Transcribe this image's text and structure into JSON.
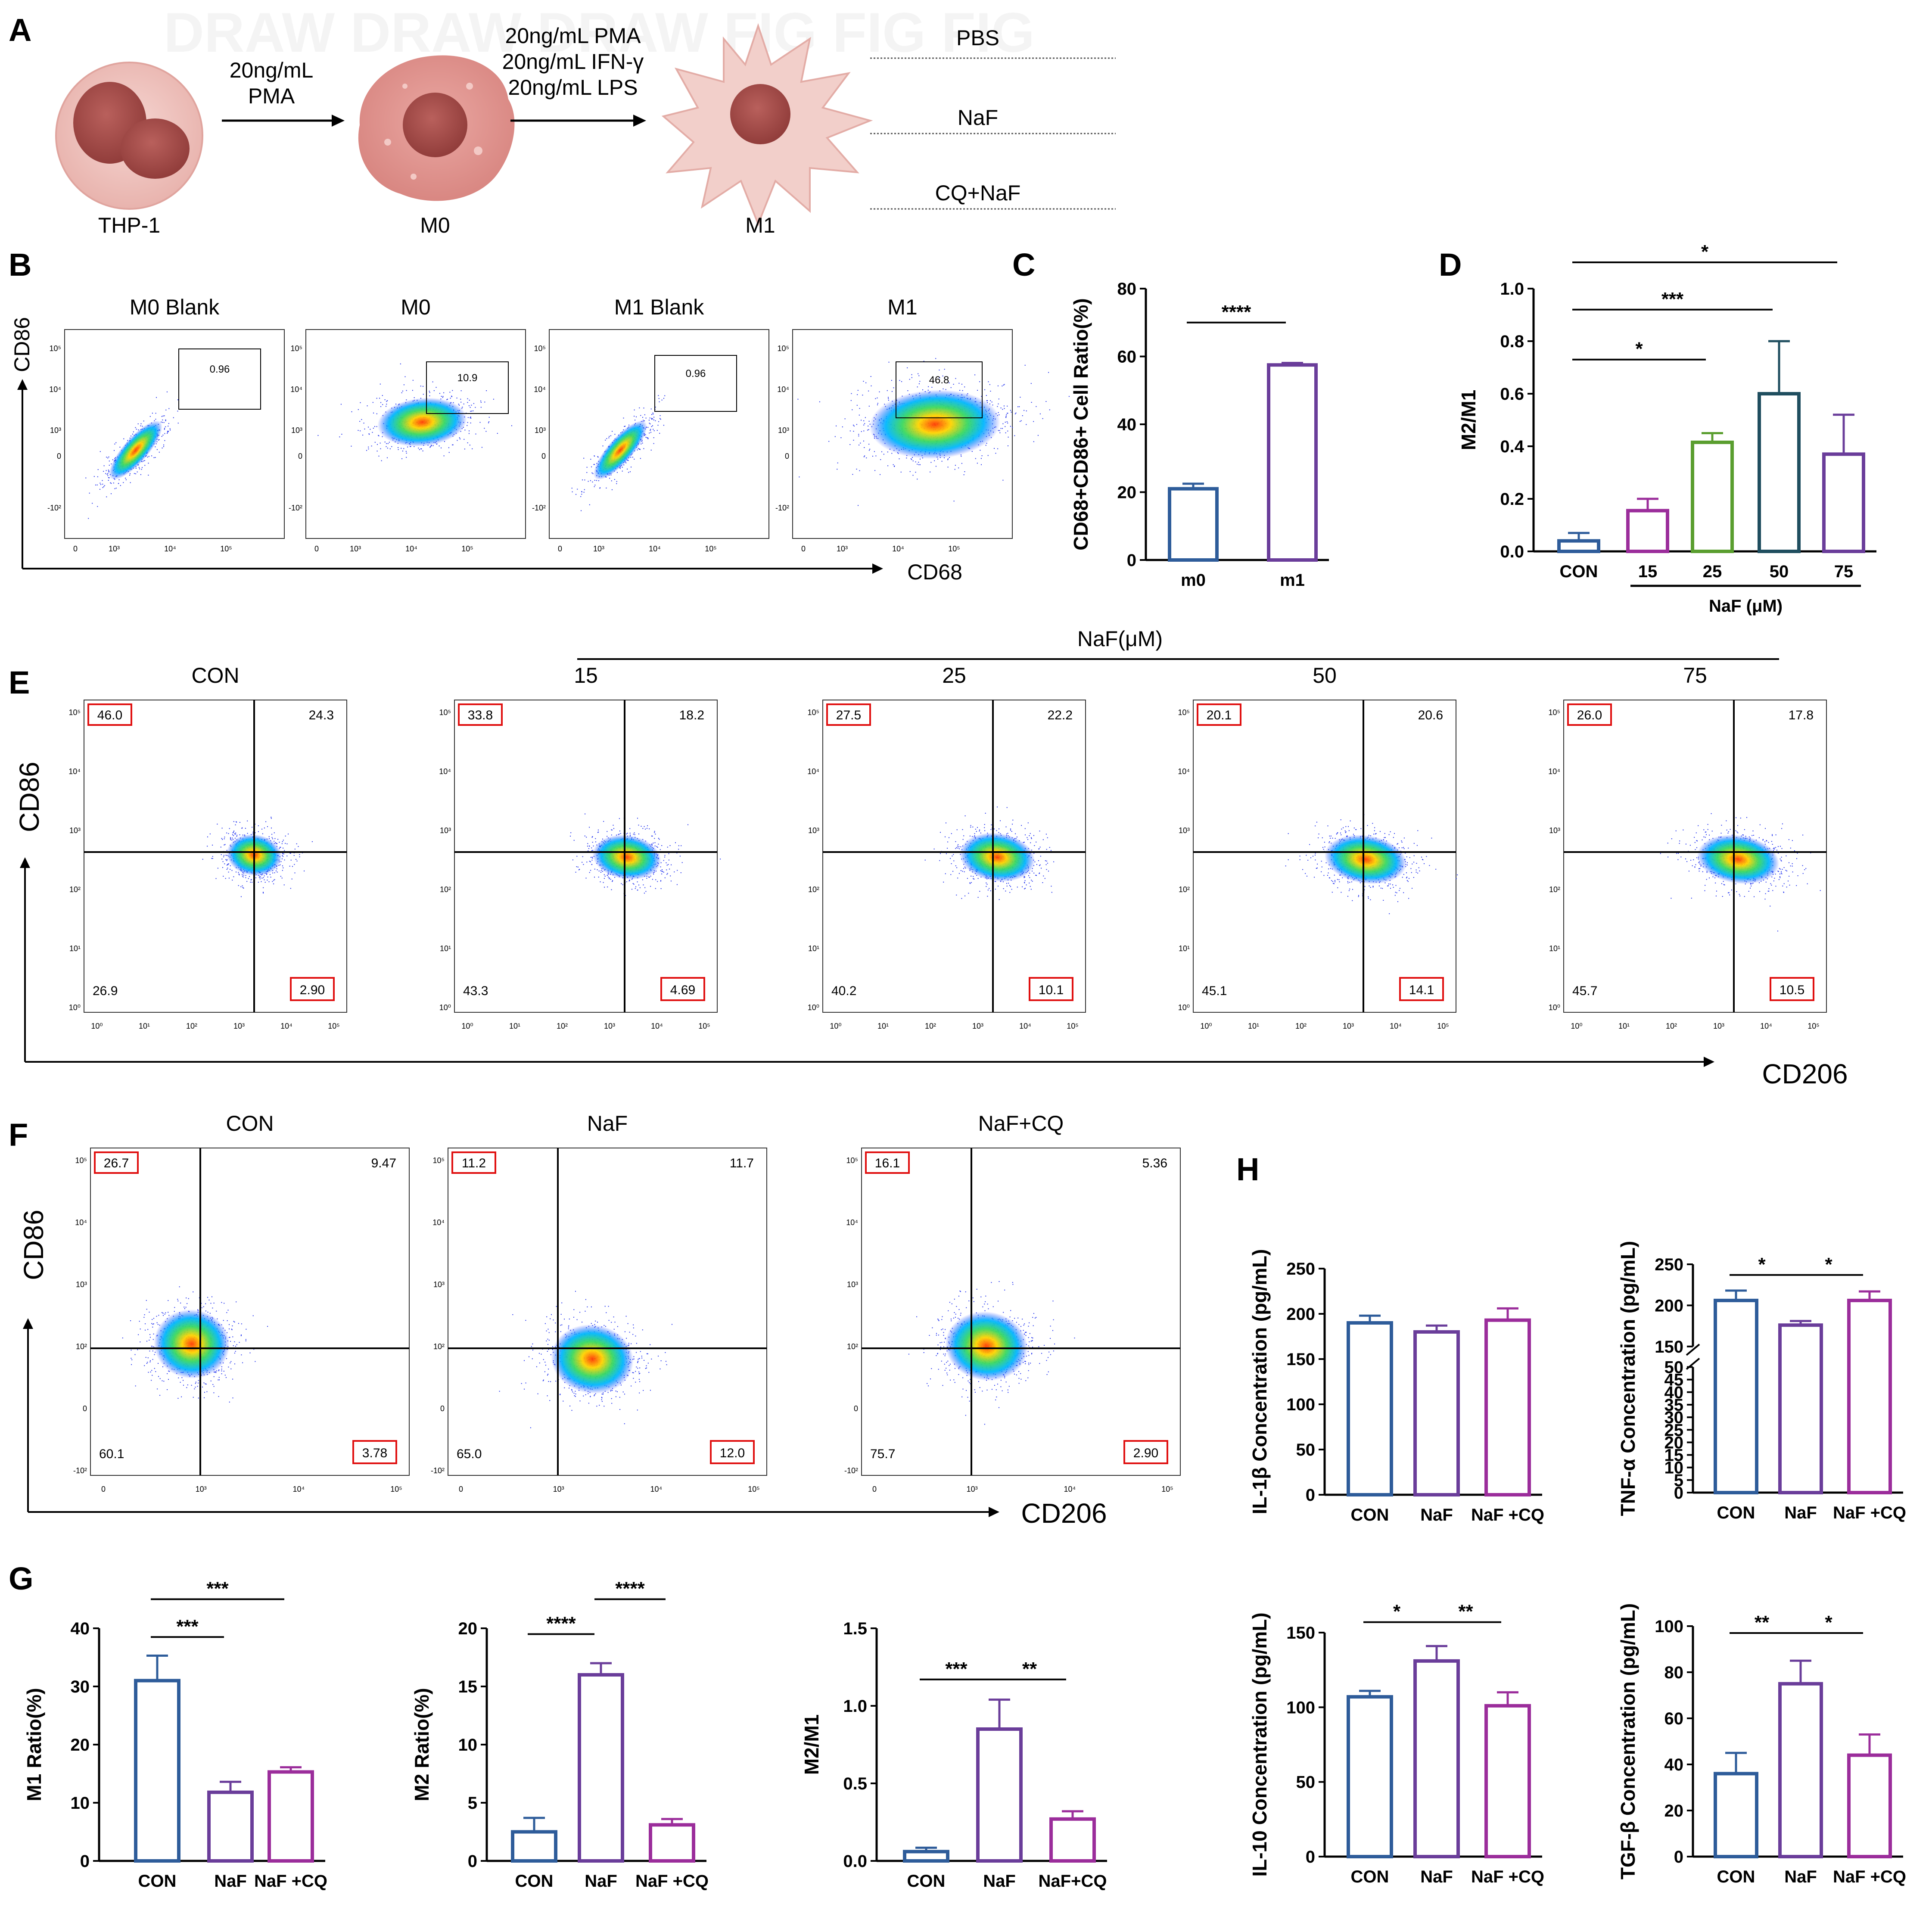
{
  "panelA": {
    "letter": "A",
    "cells": [
      "THP-1",
      "M0",
      "M1"
    ],
    "step1": [
      "20ng/mL",
      "PMA"
    ],
    "step2": [
      "20ng/mL PMA",
      "20ng/mL IFN-γ",
      "20ng/mL  LPS"
    ],
    "treatments": [
      "PBS",
      "NaF",
      "CQ+NaF"
    ],
    "watermark": "DRAW  DRAW  DRAW  FIG  FIG  FIG"
  },
  "panelB": {
    "letter": "B",
    "titles": [
      "M0 Blank",
      "M0",
      "M1 Blank",
      "M1"
    ],
    "gate_values": [
      "0.96",
      "10.9",
      "0.96",
      "46.8"
    ],
    "ylabel": "CD86",
    "xlabel": "CD68",
    "yticks": [
      "10⁵",
      "10⁴",
      "10³",
      "0",
      "-10²"
    ],
    "xticks": [
      "0",
      "10³",
      "10⁴",
      "10⁵"
    ]
  },
  "panelE": {
    "letter": "E",
    "header": "NaF(μM)",
    "titles": [
      "CON",
      "15",
      "25",
      "50",
      "75"
    ],
    "quadrants": [
      {
        "ul": "46.0",
        "ur": "24.3",
        "ll": "26.9",
        "lr": "2.90"
      },
      {
        "ul": "33.8",
        "ur": "18.2",
        "ll": "43.3",
        "lr": "4.69"
      },
      {
        "ul": "27.5",
        "ur": "22.2",
        "ll": "40.2",
        "lr": "10.1"
      },
      {
        "ul": "20.1",
        "ur": "20.6",
        "ll": "45.1",
        "lr": "14.1"
      },
      {
        "ul": "26.0",
        "ur": "17.8",
        "ll": "45.7",
        "lr": "10.5"
      }
    ],
    "ylabel": "CD86",
    "xlabel": "CD206",
    "yticks": [
      "10⁵",
      "10⁴",
      "10³",
      "10²",
      "10¹",
      "10⁰"
    ],
    "xticks": [
      "10⁰",
      "10¹",
      "10²",
      "10³",
      "10⁴",
      "10⁵"
    ]
  },
  "panelF": {
    "letter": "F",
    "titles": [
      "CON",
      "NaF",
      "NaF+CQ"
    ],
    "quadrants": [
      {
        "ul": "26.7",
        "ur": "9.47",
        "ll": "60.1",
        "lr": "3.78"
      },
      {
        "ul": "11.2",
        "ur": "11.7",
        "ll": "65.0",
        "lr": "12.0"
      },
      {
        "ul": "16.1",
        "ur": "5.36",
        "ll": "75.7",
        "lr": "2.90"
      }
    ],
    "ylabel": "CD86",
    "xlabel": "CD206",
    "yticks": [
      "10⁵",
      "10⁴",
      "10³",
      "10²",
      "0",
      "-10²"
    ],
    "xticks": [
      "0",
      "10³",
      "10⁴",
      "10⁵"
    ]
  },
  "letters": {
    "C": "C",
    "D": "D",
    "G": "G",
    "H": "H"
  },
  "chart_data": [
    {
      "id": "C",
      "type": "bar",
      "ylabel": "CD68+CD86+ Cell Ratio(%)",
      "categories": [
        "m0",
        "m1"
      ],
      "values": [
        21,
        57.5
      ],
      "errors": [
        1.5,
        0.6
      ],
      "colors": [
        "#2e5c9a",
        "#6a3d9a"
      ],
      "ylim": [
        0,
        80
      ],
      "yticks": [
        0,
        20,
        40,
        60,
        80
      ],
      "yticklabels": [
        "0",
        "20",
        "40",
        "60",
        "80"
      ],
      "sig": [
        {
          "from": 0,
          "to": 1,
          "label": "****",
          "y": 70
        }
      ]
    },
    {
      "id": "D",
      "type": "bar",
      "ylabel": "M2/M1",
      "categories": [
        "CON",
        "15",
        "25",
        "50",
        "75"
      ],
      "values": [
        0.04,
        0.155,
        0.415,
        0.6,
        0.37
      ],
      "errors": [
        0.03,
        0.045,
        0.035,
        0.2,
        0.15
      ],
      "colors": [
        "#2e5c9a",
        "#9b2d9b",
        "#5a9e2f",
        "#1f4e5f",
        "#6a3d9a"
      ],
      "ylim": [
        0,
        1.0
      ],
      "yticks": [
        0,
        0.2,
        0.4,
        0.6,
        0.8,
        1.0
      ],
      "yticklabels": [
        "0.0",
        "0.2",
        "0.4",
        "0.6",
        "0.8",
        "1.0"
      ],
      "group_label": "NaF (μM)",
      "sig": [
        {
          "from": 0,
          "to": 2,
          "label": "*",
          "y": 0.73
        },
        {
          "from": 0,
          "to": 3,
          "label": "***",
          "y": 0.92
        },
        {
          "from": 0,
          "to": 4,
          "label": "*",
          "y": 1.1
        }
      ]
    },
    {
      "id": "G1",
      "type": "bar",
      "ylabel": "M1 Ratio(%)",
      "categories": [
        "CON",
        "NaF",
        "NaF +CQ"
      ],
      "values": [
        31,
        11.8,
        15.3
      ],
      "errors": [
        4.3,
        1.8,
        0.8
      ],
      "colors": [
        "#2e5c9a",
        "#6a3d9a",
        "#9b2d9b"
      ],
      "ylim": [
        0,
        40
      ],
      "yticks": [
        0,
        10,
        20,
        30,
        40
      ],
      "yticklabels": [
        "0",
        "10",
        "20",
        "30",
        "40"
      ],
      "sig": [
        {
          "from": 0,
          "to": 1,
          "label": "***",
          "y": 38.5
        },
        {
          "from": 0,
          "to": 2,
          "label": "***",
          "y": 45
        }
      ]
    },
    {
      "id": "G2",
      "type": "bar",
      "ylabel": "M2 Ratio(%)",
      "categories": [
        "CON",
        "NaF",
        "NaF +CQ"
      ],
      "values": [
        2.5,
        16,
        3.1
      ],
      "errors": [
        1.2,
        1.0,
        0.5
      ],
      "colors": [
        "#2e5c9a",
        "#6a3d9a",
        "#9b2d9b"
      ],
      "ylim": [
        0,
        20
      ],
      "yticks": [
        0,
        5,
        10,
        15,
        20
      ],
      "yticklabels": [
        "0",
        "5",
        "10",
        "15",
        "20"
      ],
      "sig": [
        {
          "from": 0,
          "to": 1,
          "label": "****",
          "y": 19.5
        },
        {
          "from": 1,
          "to": 2,
          "label": "****",
          "y": 22.5
        }
      ]
    },
    {
      "id": "G3",
      "type": "bar",
      "ylabel": "M2/M1",
      "categories": [
        "CON",
        "NaF",
        "NaF+CQ"
      ],
      "values": [
        0.06,
        0.85,
        0.27
      ],
      "errors": [
        0.025,
        0.19,
        0.05
      ],
      "colors": [
        "#2e5c9a",
        "#6a3d9a",
        "#9b2d9b"
      ],
      "ylim": [
        0,
        1.5
      ],
      "yticks": [
        0,
        0.5,
        1.0,
        1.5
      ],
      "yticklabels": [
        "0.0",
        "0.5",
        "1.0",
        "1.5"
      ],
      "sig": [
        {
          "from": 0,
          "to": 1,
          "label": "***",
          "y": 1.17
        },
        {
          "from": 1,
          "to": 2,
          "label": "**",
          "y": 1.17
        }
      ]
    },
    {
      "id": "H1",
      "type": "bar",
      "ylabel": "IL-1β Concentration  (pg/mL)",
      "categories": [
        "CON",
        "NaF",
        "NaF +CQ"
      ],
      "values": [
        190,
        180,
        193
      ],
      "errors": [
        8,
        7,
        13
      ],
      "colors": [
        "#2e5c9a",
        "#6a3d9a",
        "#9b2d9b"
      ],
      "ylim": [
        0,
        250
      ],
      "yticks": [
        0,
        50,
        100,
        150,
        200,
        250
      ],
      "yticklabels": [
        "0",
        "50",
        "100",
        "150",
        "200",
        "250"
      ],
      "sig": []
    },
    {
      "id": "H2",
      "type": "bar",
      "ylabel": "TNF-α Concentration  (pg/mL)",
      "categories": [
        "CON",
        "NaF",
        "NaF +CQ"
      ],
      "values": [
        206,
        176,
        206
      ],
      "errors": [
        12,
        5,
        11
      ],
      "colors": [
        "#2e5c9a",
        "#6a3d9a",
        "#9b2d9b"
      ],
      "ylim": [
        0,
        250
      ],
      "broken_axis": {
        "lower": [
          0,
          50
        ],
        "upper": [
          150,
          250
        ]
      },
      "yticks": [
        0,
        5,
        10,
        15,
        20,
        25,
        30,
        35,
        40,
        45,
        50,
        150,
        200,
        250
      ],
      "yticklabels": [
        "0",
        "5",
        "10",
        "15",
        "20",
        "25",
        "30",
        "35",
        "40",
        "45",
        "50",
        "150",
        "200",
        "250"
      ],
      "sig": [
        {
          "from": 0,
          "to": 1,
          "label": "*",
          "y": 237
        },
        {
          "from": 1,
          "to": 2,
          "label": "*",
          "y": 237
        }
      ]
    },
    {
      "id": "H3",
      "type": "bar",
      "ylabel": "IL-10 Concentration  (pg/mL)",
      "categories": [
        "CON",
        "NaF",
        "NaF +CQ"
      ],
      "values": [
        107,
        131,
        101
      ],
      "errors": [
        4,
        10,
        9
      ],
      "colors": [
        "#2e5c9a",
        "#6a3d9a",
        "#9b2d9b"
      ],
      "ylim": [
        0,
        150
      ],
      "yticks": [
        0,
        50,
        100,
        150
      ],
      "yticklabels": [
        "0",
        "50",
        "100",
        "150"
      ],
      "sig": [
        {
          "from": 0,
          "to": 1,
          "label": "*",
          "y": 157
        },
        {
          "from": 1,
          "to": 2,
          "label": "**",
          "y": 157
        }
      ]
    },
    {
      "id": "H4",
      "type": "bar",
      "ylabel": "TGF-β Concentration  (pg/mL)",
      "categories": [
        "CON",
        "NaF",
        "NaF +CQ"
      ],
      "values": [
        36,
        75,
        44
      ],
      "errors": [
        9,
        10,
        9
      ],
      "colors": [
        "#2e5c9a",
        "#6a3d9a",
        "#9b2d9b"
      ],
      "ylim": [
        0,
        100
      ],
      "yticks": [
        0,
        20,
        40,
        60,
        80,
        100
      ],
      "yticklabels": [
        "0",
        "20",
        "40",
        "60",
        "80",
        "100"
      ],
      "sig": [
        {
          "from": 0,
          "to": 1,
          "label": "**",
          "y": 97
        },
        {
          "from": 1,
          "to": 2,
          "label": "*",
          "y": 97
        }
      ]
    }
  ]
}
